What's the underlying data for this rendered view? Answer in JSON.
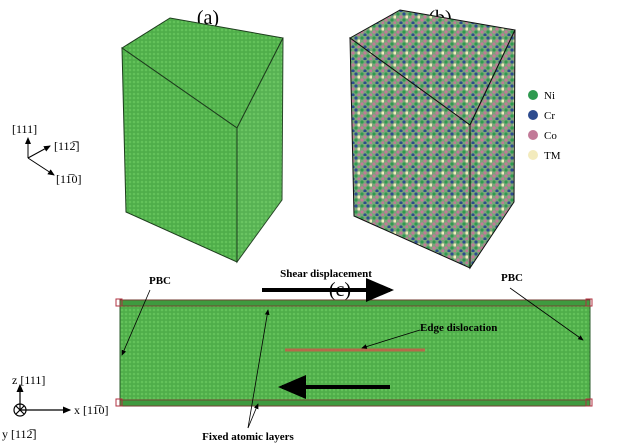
{
  "panel_labels": [
    "(a)",
    "(b)",
    "(c)"
  ],
  "crystal_axes": [
    "[111]",
    "[112̅]",
    "[11̅0]"
  ],
  "legend": [
    {
      "label": "Ni",
      "color": "#2f9a50"
    },
    {
      "label": "Cr",
      "color": "#2d4b8e"
    },
    {
      "label": "Co",
      "color": "#c27a98"
    },
    {
      "label": "TM",
      "color": "#f3ebbd"
    }
  ],
  "annotations": {
    "pbc_left": "PBC",
    "pbc_right": "PBC",
    "shear": "Shear displacement",
    "dislocation": "Edge dislocation",
    "fixed_layers": "Fixed atomic layers"
  },
  "coordinate_system": {
    "z": "z [111]",
    "x": "x [11̅0]",
    "y": "y [112̅]"
  }
}
